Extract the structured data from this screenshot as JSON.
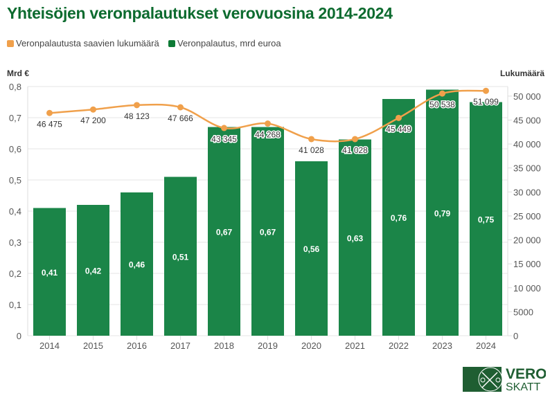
{
  "chart_data": {
    "type": "bar+line",
    "title": "Yhteisöjen veronpalautukset verovuosina 2014-2024",
    "categories": [
      "2014",
      "2015",
      "2016",
      "2017",
      "2018",
      "2019",
      "2020",
      "2021",
      "2022",
      "2023",
      "2024"
    ],
    "series": [
      {
        "name": "Veronpalautus, mrd euroa",
        "type": "bar",
        "axis": "left",
        "color": "#1b8548",
        "values": [
          0.41,
          0.42,
          0.46,
          0.51,
          0.67,
          0.67,
          0.56,
          0.63,
          0.76,
          0.79,
          0.75
        ],
        "labels": [
          "0,41",
          "0,42",
          "0,46",
          "0,51",
          "0,67",
          "0,67",
          "0,56",
          "0,63",
          "0,76",
          "0,79",
          "0,75"
        ]
      },
      {
        "name": "Veronpalautusta saavien lukumäärä",
        "type": "line",
        "axis": "right",
        "color": "#f0a04b",
        "values": [
          46475,
          47200,
          48123,
          47666,
          43345,
          44268,
          41028,
          41028,
          45449,
          50538,
          51099
        ],
        "labels": [
          "46 475",
          "47 200",
          "48 123",
          "47 666",
          "43 345",
          "44 268",
          "41 028",
          "41 028",
          "45 449",
          "50 538",
          "51 099"
        ]
      }
    ],
    "left_axis": {
      "label": "Mrd €",
      "range": [
        0,
        0.8
      ],
      "ticks": [
        "0",
        "0,1",
        "0,2",
        "0,3",
        "0,4",
        "0,5",
        "0,6",
        "0,7",
        "0,8"
      ]
    },
    "right_axis": {
      "label": "Lukumäärä",
      "range": [
        0,
        52000
      ],
      "ticks": [
        "0",
        "5000",
        "10 000",
        "15 000",
        "20 000",
        "25 000",
        "30 000",
        "35 000",
        "40 000",
        "45 000",
        "50 000"
      ]
    },
    "grid": true,
    "legend_position": "top-left"
  },
  "logo": {
    "line1": "VERO",
    "line2": "SKATT"
  }
}
